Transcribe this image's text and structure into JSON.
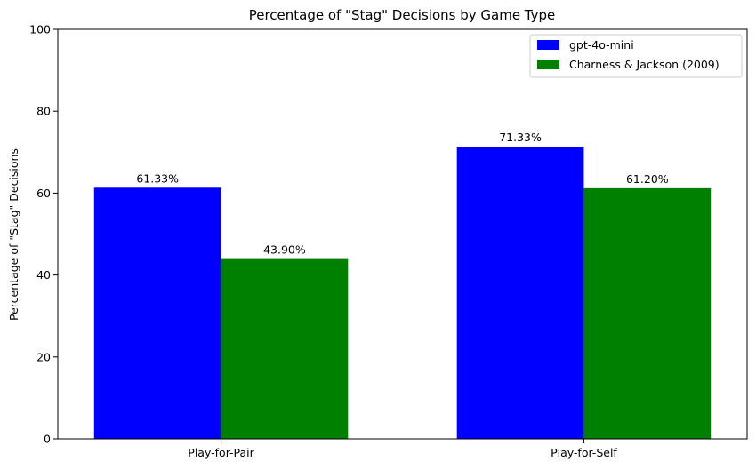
{
  "chart_data": {
    "type": "bar",
    "title": "Percentage of \"Stag\" Decisions by Game Type",
    "xlabel": "",
    "ylabel": "Percentage of \"Stag\" Decisions",
    "categories": [
      "Play-for-Pair",
      "Play-for-Self"
    ],
    "ylim": [
      0,
      100
    ],
    "yticks": [
      "0",
      "20",
      "40",
      "60",
      "80",
      "100"
    ],
    "grid": false,
    "legend_position": "top-right",
    "series": [
      {
        "name": "gpt-4o-mini",
        "color": "#0000ff",
        "values": [
          61.33,
          71.33
        ],
        "labels": [
          "61.33%",
          "71.33%"
        ]
      },
      {
        "name": "Charness & Jackson (2009)",
        "color": "#008000",
        "values": [
          43.9,
          61.2
        ],
        "labels": [
          "43.90%",
          "61.20%"
        ]
      }
    ]
  }
}
